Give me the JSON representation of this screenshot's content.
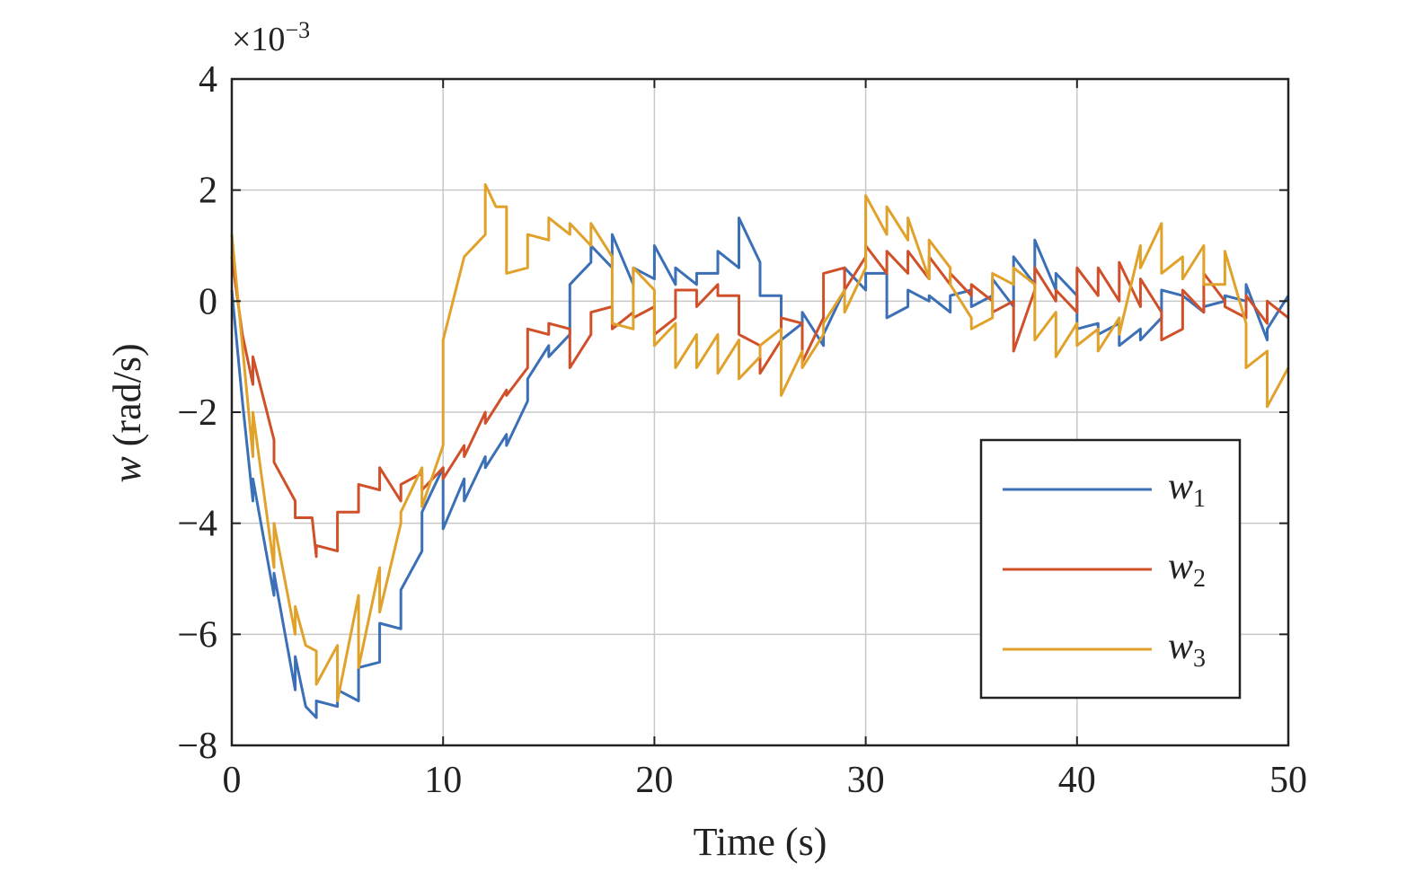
{
  "chart_data": {
    "type": "line",
    "xlabel": "Time (s)",
    "ylabel": {
      "symbol": "w",
      "unit": "(rad/s)"
    },
    "y_multiplier": {
      "base": "×10",
      "exponent": "−3"
    },
    "xlim": [
      0,
      50
    ],
    "ylim": [
      -8,
      4
    ],
    "x_ticks": [
      0,
      10,
      20,
      30,
      40,
      50
    ],
    "x_tick_labels": [
      "0",
      "10",
      "20",
      "30",
      "40",
      "50"
    ],
    "y_ticks": [
      -8,
      -6,
      -4,
      -2,
      0,
      2,
      4
    ],
    "y_tick_labels": [
      "−8",
      "−6",
      "−4",
      "−2",
      "0",
      "2",
      "4"
    ],
    "grid": true,
    "legend_position": "lower-right",
    "series": [
      {
        "name": "w",
        "subscript": "1",
        "color": "#3b6fb6",
        "points": [
          [
            0,
            0.2
          ],
          [
            0.5,
            -1.8
          ],
          [
            1,
            -3.6
          ],
          [
            1,
            -3.2
          ],
          [
            2,
            -5.3
          ],
          [
            2,
            -4.9
          ],
          [
            3,
            -7.0
          ],
          [
            3,
            -6.4
          ],
          [
            3.5,
            -7.3
          ],
          [
            4,
            -7.5
          ],
          [
            4,
            -7.2
          ],
          [
            5,
            -7.3
          ],
          [
            5,
            -7.0
          ],
          [
            6,
            -7.2
          ],
          [
            6,
            -6.6
          ],
          [
            7,
            -6.5
          ],
          [
            7,
            -5.8
          ],
          [
            8,
            -5.9
          ],
          [
            8,
            -5.2
          ],
          [
            9,
            -4.5
          ],
          [
            9,
            -3.8
          ],
          [
            10,
            -3.0
          ],
          [
            10,
            -4.1
          ],
          [
            11,
            -3.2
          ],
          [
            11,
            -3.6
          ],
          [
            12,
            -2.8
          ],
          [
            12,
            -3.0
          ],
          [
            13,
            -2.4
          ],
          [
            13,
            -2.6
          ],
          [
            14,
            -1.8
          ],
          [
            14,
            -1.4
          ],
          [
            15,
            -0.8
          ],
          [
            15,
            -1.0
          ],
          [
            16,
            -0.6
          ],
          [
            16,
            0.3
          ],
          [
            17,
            0.7
          ],
          [
            17,
            1.0
          ],
          [
            18,
            0.6
          ],
          [
            18,
            1.2
          ],
          [
            19,
            0.3
          ],
          [
            19,
            0.6
          ],
          [
            20,
            0.4
          ],
          [
            20,
            1.0
          ],
          [
            21,
            0.3
          ],
          [
            21,
            0.6
          ],
          [
            22,
            0.3
          ],
          [
            22,
            0.5
          ],
          [
            23,
            0.5
          ],
          [
            23,
            0.9
          ],
          [
            24,
            0.6
          ],
          [
            24,
            1.5
          ],
          [
            25,
            0.7
          ],
          [
            25,
            0.1
          ],
          [
            26,
            0.1
          ],
          [
            26,
            -0.7
          ],
          [
            27,
            -0.4
          ],
          [
            27,
            -0.2
          ],
          [
            28,
            -0.8
          ],
          [
            28,
            -0.6
          ],
          [
            29,
            0.2
          ],
          [
            29,
            0.6
          ],
          [
            30,
            0.2
          ],
          [
            30,
            0.5
          ],
          [
            31,
            0.5
          ],
          [
            31,
            -0.3
          ],
          [
            32,
            -0.1
          ],
          [
            32,
            0.2
          ],
          [
            33,
            0.0
          ],
          [
            33,
            0.1
          ],
          [
            34,
            -0.2
          ],
          [
            34,
            0.1
          ],
          [
            35,
            0.2
          ],
          [
            35,
            -0.1
          ],
          [
            36,
            0.1
          ],
          [
            36,
            0.4
          ],
          [
            37,
            -0.1
          ],
          [
            37,
            0.8
          ],
          [
            38,
            0.3
          ],
          [
            38,
            1.1
          ],
          [
            39,
            0.2
          ],
          [
            39,
            0.5
          ],
          [
            40,
            0.1
          ],
          [
            40,
            -0.5
          ],
          [
            41,
            -0.4
          ],
          [
            41,
            -0.6
          ],
          [
            42,
            -0.4
          ],
          [
            42,
            -0.8
          ],
          [
            43,
            -0.5
          ],
          [
            43,
            -0.7
          ],
          [
            44,
            -0.3
          ],
          [
            44,
            0.2
          ],
          [
            45,
            0.1
          ],
          [
            45,
            0.1
          ],
          [
            46,
            -0.2
          ],
          [
            46,
            -0.1
          ],
          [
            47,
            0.0
          ],
          [
            47,
            0.1
          ],
          [
            48,
            0.0
          ],
          [
            48,
            0.3
          ],
          [
            49,
            -0.7
          ],
          [
            49,
            -0.5
          ],
          [
            50,
            0.1
          ]
        ]
      },
      {
        "name": "w",
        "subscript": "2",
        "color": "#d0502a",
        "points": [
          [
            0,
            0.8
          ],
          [
            0.5,
            -0.6
          ],
          [
            1,
            -1.5
          ],
          [
            1,
            -1.0
          ],
          [
            2,
            -2.5
          ],
          [
            2,
            -2.9
          ],
          [
            3,
            -3.6
          ],
          [
            3,
            -3.9
          ],
          [
            3.8,
            -3.9
          ],
          [
            4,
            -4.6
          ],
          [
            4,
            -4.4
          ],
          [
            5,
            -4.5
          ],
          [
            5,
            -3.8
          ],
          [
            6,
            -3.8
          ],
          [
            6,
            -3.3
          ],
          [
            7,
            -3.4
          ],
          [
            7,
            -3.0
          ],
          [
            8,
            -3.6
          ],
          [
            8,
            -3.3
          ],
          [
            9,
            -3.1
          ],
          [
            9,
            -3.4
          ],
          [
            10,
            -3.0
          ],
          [
            10,
            -3.2
          ],
          [
            11,
            -2.6
          ],
          [
            11,
            -2.8
          ],
          [
            12,
            -2.0
          ],
          [
            12,
            -2.2
          ],
          [
            13,
            -1.6
          ],
          [
            13,
            -1.7
          ],
          [
            14,
            -1.2
          ],
          [
            14,
            -0.5
          ],
          [
            15,
            -0.6
          ],
          [
            15,
            -0.4
          ],
          [
            16,
            -0.5
          ],
          [
            16,
            -1.2
          ],
          [
            17,
            -0.6
          ],
          [
            17,
            -0.2
          ],
          [
            18,
            -0.1
          ],
          [
            18,
            -0.5
          ],
          [
            19,
            -0.2
          ],
          [
            19,
            -0.3
          ],
          [
            20,
            -0.1
          ],
          [
            20,
            -0.6
          ],
          [
            21,
            -0.3
          ],
          [
            21,
            0.2
          ],
          [
            22,
            0.2
          ],
          [
            22,
            -0.1
          ],
          [
            23,
            0.3
          ],
          [
            23,
            0.1
          ],
          [
            24,
            0.1
          ],
          [
            24,
            -0.6
          ],
          [
            25,
            -0.8
          ],
          [
            25,
            -1.3
          ],
          [
            26,
            -0.7
          ],
          [
            26,
            -0.3
          ],
          [
            27,
            -0.4
          ],
          [
            27,
            -1.1
          ],
          [
            28,
            -0.3
          ],
          [
            28,
            0.5
          ],
          [
            29,
            0.6
          ],
          [
            29,
            0.2
          ],
          [
            30,
            0.8
          ],
          [
            30,
            1.0
          ],
          [
            31,
            0.5
          ],
          [
            31,
            0.9
          ],
          [
            32,
            0.5
          ],
          [
            32,
            0.9
          ],
          [
            33,
            0.4
          ],
          [
            33,
            0.8
          ],
          [
            34,
            0.3
          ],
          [
            34,
            0.5
          ],
          [
            35,
            0.1
          ],
          [
            35,
            0.3
          ],
          [
            36,
            0.0
          ],
          [
            36,
            -0.2
          ],
          [
            37,
            0.0
          ],
          [
            37,
            -0.9
          ],
          [
            38,
            0.2
          ],
          [
            38,
            0.6
          ],
          [
            39,
            0.0
          ],
          [
            39,
            0.2
          ],
          [
            40,
            -0.2
          ],
          [
            40,
            0.6
          ],
          [
            41,
            0.1
          ],
          [
            41,
            0.6
          ],
          [
            42,
            0.0
          ],
          [
            42,
            0.7
          ],
          [
            43,
            -0.1
          ],
          [
            43,
            0.4
          ],
          [
            44,
            -0.2
          ],
          [
            44,
            -0.7
          ],
          [
            45,
            -0.5
          ],
          [
            45,
            0.2
          ],
          [
            46,
            -0.2
          ],
          [
            46,
            0.5
          ],
          [
            47,
            0.0
          ],
          [
            47,
            -0.1
          ],
          [
            48,
            -0.3
          ],
          [
            48,
            0.1
          ],
          [
            49,
            -0.4
          ],
          [
            49,
            0.0
          ],
          [
            50,
            -0.3
          ]
        ]
      },
      {
        "name": "w",
        "subscript": "3",
        "color": "#e0a22b",
        "points": [
          [
            0,
            1.2
          ],
          [
            0.5,
            -0.8
          ],
          [
            1,
            -2.8
          ],
          [
            1,
            -2.0
          ],
          [
            2,
            -4.8
          ],
          [
            2,
            -4.0
          ],
          [
            3,
            -6.0
          ],
          [
            3,
            -5.5
          ],
          [
            3.5,
            -6.2
          ],
          [
            4,
            -6.3
          ],
          [
            4,
            -6.9
          ],
          [
            5,
            -6.2
          ],
          [
            5,
            -7.2
          ],
          [
            6,
            -5.3
          ],
          [
            6,
            -6.6
          ],
          [
            7,
            -4.8
          ],
          [
            7,
            -5.6
          ],
          [
            8,
            -4.0
          ],
          [
            8,
            -3.8
          ],
          [
            9,
            -3.0
          ],
          [
            9,
            -3.7
          ],
          [
            10,
            -2.6
          ],
          [
            10,
            -0.7
          ],
          [
            11,
            0.8
          ],
          [
            11,
            0.8
          ],
          [
            12,
            1.2
          ],
          [
            12,
            2.1
          ],
          [
            12.5,
            1.7
          ],
          [
            13,
            1.7
          ],
          [
            13,
            0.5
          ],
          [
            14,
            0.6
          ],
          [
            14,
            1.2
          ],
          [
            15,
            1.1
          ],
          [
            15,
            1.5
          ],
          [
            16,
            1.2
          ],
          [
            16,
            1.4
          ],
          [
            17,
            1.0
          ],
          [
            17,
            1.4
          ],
          [
            18,
            0.8
          ],
          [
            18,
            -0.4
          ],
          [
            19,
            -0.5
          ],
          [
            19,
            0.6
          ],
          [
            20,
            0.2
          ],
          [
            20,
            -0.8
          ],
          [
            21,
            -0.4
          ],
          [
            21,
            -1.2
          ],
          [
            22,
            -0.6
          ],
          [
            22,
            -1.2
          ],
          [
            23,
            -0.6
          ],
          [
            23,
            -1.3
          ],
          [
            24,
            -0.7
          ],
          [
            24,
            -1.4
          ],
          [
            25,
            -1.0
          ],
          [
            25,
            -0.8
          ],
          [
            26,
            -0.5
          ],
          [
            26,
            -1.7
          ],
          [
            27,
            -0.9
          ],
          [
            27,
            -1.2
          ],
          [
            28,
            -0.6
          ],
          [
            28,
            -0.4
          ],
          [
            29,
            0.2
          ],
          [
            29,
            -0.2
          ],
          [
            30,
            0.6
          ],
          [
            30,
            1.9
          ],
          [
            31,
            1.2
          ],
          [
            31,
            1.7
          ],
          [
            32,
            1.1
          ],
          [
            32,
            1.5
          ],
          [
            33,
            0.4
          ],
          [
            33,
            1.1
          ],
          [
            34,
            0.6
          ],
          [
            34,
            0.3
          ],
          [
            35,
            -0.3
          ],
          [
            35,
            -0.5
          ],
          [
            36,
            -0.3
          ],
          [
            36,
            0.5
          ],
          [
            37,
            0.3
          ],
          [
            37,
            0.6
          ],
          [
            38,
            0.3
          ],
          [
            38,
            -0.7
          ],
          [
            39,
            -0.2
          ],
          [
            39,
            -1.0
          ],
          [
            40,
            -0.4
          ],
          [
            40,
            -0.8
          ],
          [
            41,
            -0.5
          ],
          [
            41,
            -0.9
          ],
          [
            42,
            -0.3
          ],
          [
            42,
            -0.6
          ],
          [
            43,
            1.0
          ],
          [
            43,
            0.6
          ],
          [
            44,
            1.4
          ],
          [
            44,
            0.5
          ],
          [
            45,
            0.8
          ],
          [
            45,
            0.4
          ],
          [
            46,
            1.0
          ],
          [
            46,
            0.3
          ],
          [
            47,
            0.3
          ],
          [
            47,
            0.9
          ],
          [
            48,
            -0.4
          ],
          [
            48,
            -1.2
          ],
          [
            49,
            -0.9
          ],
          [
            49,
            -1.9
          ],
          [
            50,
            -1.2
          ]
        ]
      }
    ]
  }
}
